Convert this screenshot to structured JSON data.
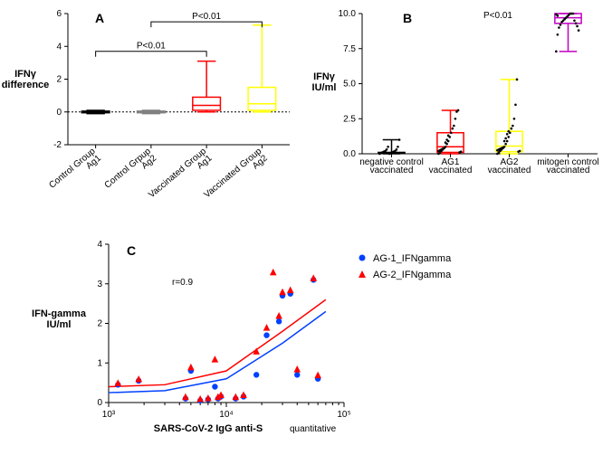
{
  "panelA": {
    "letter": "A",
    "ylabel": "IFNγ\ndifference",
    "pvals": [
      "P<0.01",
      "P<0.01"
    ],
    "ylim": [
      -2,
      6
    ],
    "yticks": [
      -2,
      0,
      2,
      4,
      6
    ],
    "categories": [
      "Control Group\nAg1",
      "Control Grpup\nAg2",
      "Vaccinated Group\nAg1",
      "Vaccinated Group\nAg2"
    ],
    "boxes": [
      {
        "min": -0.1,
        "q1": -0.05,
        "med": 0.0,
        "q3": 0.05,
        "max": 0.1,
        "color": "#000000",
        "fill": "#000000"
      },
      {
        "min": -0.1,
        "q1": -0.05,
        "med": 0.0,
        "q3": 0.05,
        "max": 0.1,
        "color": "#808080",
        "fill": "#808080"
      },
      {
        "min": 0.0,
        "q1": 0.1,
        "med": 0.4,
        "q3": 0.9,
        "max": 3.1,
        "color": "#ff0000",
        "fill": "none"
      },
      {
        "min": 0.0,
        "q1": 0.1,
        "med": 0.5,
        "q3": 1.5,
        "max": 5.3,
        "color": "#ffff00",
        "fill": "none"
      }
    ]
  },
  "panelB": {
    "letter": "B",
    "ylabel": "IFNγ\nIU/ml",
    "pval": "P<0.01",
    "ylim": [
      0,
      10
    ],
    "yticks": [
      0.0,
      2.5,
      5.0,
      7.5,
      10.0
    ],
    "categories": [
      "negative control\nvaccinated",
      "AG1\nvaccinated",
      "AG2\nvaccinated",
      "mitogen control\nvaccinated"
    ],
    "boxes": [
      {
        "min": 0.0,
        "q1": 0.02,
        "med": 0.05,
        "q3": 0.1,
        "max": 1.0,
        "color": "#000000",
        "fill": "none"
      },
      {
        "min": 0.0,
        "q1": 0.1,
        "med": 0.5,
        "q3": 1.5,
        "max": 3.1,
        "color": "#ff0000",
        "fill": "none"
      },
      {
        "min": 0.0,
        "q1": 0.15,
        "med": 0.55,
        "q3": 1.6,
        "max": 5.3,
        "color": "#ffff00",
        "fill": "none"
      },
      {
        "min": 7.3,
        "q1": 9.3,
        "med": 9.7,
        "q3": 10.0,
        "max": 10.0,
        "color": "#c000c0",
        "fill": "none"
      }
    ],
    "scatter": [
      [
        0.0,
        0.05,
        0.1,
        0.15,
        0.2,
        0.3,
        0.5,
        0.0,
        0.05,
        0.1,
        0.15,
        0.2,
        0.3,
        0.5,
        1.0
      ],
      [
        0.0,
        0.1,
        0.2,
        0.3,
        0.4,
        0.5,
        0.7,
        0.9,
        1.2,
        1.5,
        1.8,
        2.0,
        2.5,
        3.0,
        3.1,
        0.1,
        0.15,
        0.2,
        0.25,
        0.3,
        0.35,
        0.4,
        0.8,
        1.0,
        1.3
      ],
      [
        0.0,
        0.1,
        0.2,
        0.3,
        0.4,
        0.5,
        0.7,
        0.9,
        1.2,
        1.5,
        1.8,
        2.0,
        2.5,
        3.5,
        5.3,
        0.15,
        0.2,
        0.25,
        0.3,
        0.35,
        0.4,
        0.45,
        0.9,
        1.1,
        1.4,
        1.6
      ],
      [
        7.3,
        8.5,
        9.0,
        9.2,
        9.4,
        9.5,
        9.6,
        9.7,
        9.8,
        9.9,
        10.0,
        10.0,
        10.0,
        9.5,
        9.3,
        9.1,
        8.8,
        9.95,
        9.85
      ]
    ]
  },
  "panelC": {
    "letter": "C",
    "ylabel": "IFN-gamma\nIU/ml",
    "xlabel": "SARS-CoV-2 IgG anti-S",
    "xlabel_suffix": "quantitative",
    "rlabel": "r=0.9",
    "ylim": [
      0,
      4
    ],
    "yticks": [
      0,
      1,
      2,
      3,
      4
    ],
    "xlim": [
      1000,
      100000
    ],
    "xticks": [
      1000,
      10000,
      100000
    ],
    "xticklabels": [
      "10³",
      "10⁴",
      "10⁵"
    ],
    "legend": [
      {
        "label": "AG-1_IFNgamma",
        "color": "#0040ff",
        "shape": "circle"
      },
      {
        "label": "AG-2_IFNgamma",
        "color": "#ff0000",
        "shape": "triangle"
      }
    ],
    "series1": {
      "color": "#0040ff",
      "points": [
        {
          "x": 1200,
          "y": 0.45
        },
        {
          "x": 1800,
          "y": 0.55
        },
        {
          "x": 4500,
          "y": 0.1
        },
        {
          "x": 5000,
          "y": 0.8
        },
        {
          "x": 6000,
          "y": 0.05
        },
        {
          "x": 7000,
          "y": 0.08
        },
        {
          "x": 8000,
          "y": 0.4
        },
        {
          "x": 8500,
          "y": 0.1
        },
        {
          "x": 9000,
          "y": 0.15
        },
        {
          "x": 12000,
          "y": 0.1
        },
        {
          "x": 14000,
          "y": 0.15
        },
        {
          "x": 18000,
          "y": 0.7
        },
        {
          "x": 22000,
          "y": 1.7
        },
        {
          "x": 28000,
          "y": 2.05
        },
        {
          "x": 30000,
          "y": 2.7
        },
        {
          "x": 35000,
          "y": 2.75
        },
        {
          "x": 40000,
          "y": 0.7
        },
        {
          "x": 55000,
          "y": 3.1
        },
        {
          "x": 60000,
          "y": 0.6
        }
      ],
      "curve": [
        {
          "x": 1000,
          "y": 0.25
        },
        {
          "x": 3000,
          "y": 0.3
        },
        {
          "x": 10000,
          "y": 0.6
        },
        {
          "x": 30000,
          "y": 1.5
        },
        {
          "x": 70000,
          "y": 2.3
        }
      ]
    },
    "series2": {
      "color": "#ff0000",
      "points": [
        {
          "x": 1200,
          "y": 0.5
        },
        {
          "x": 1800,
          "y": 0.6
        },
        {
          "x": 4500,
          "y": 0.15
        },
        {
          "x": 5000,
          "y": 0.9
        },
        {
          "x": 6000,
          "y": 0.1
        },
        {
          "x": 7000,
          "y": 0.12
        },
        {
          "x": 8000,
          "y": 1.1
        },
        {
          "x": 8500,
          "y": 0.15
        },
        {
          "x": 9000,
          "y": 0.2
        },
        {
          "x": 12000,
          "y": 0.15
        },
        {
          "x": 14000,
          "y": 0.2
        },
        {
          "x": 18000,
          "y": 1.3
        },
        {
          "x": 22000,
          "y": 1.9
        },
        {
          "x": 25000,
          "y": 3.3
        },
        {
          "x": 28000,
          "y": 2.2
        },
        {
          "x": 30000,
          "y": 2.8
        },
        {
          "x": 35000,
          "y": 2.85
        },
        {
          "x": 40000,
          "y": 0.85
        },
        {
          "x": 55000,
          "y": 3.15
        },
        {
          "x": 60000,
          "y": 0.7
        }
      ],
      "curve": [
        {
          "x": 1000,
          "y": 0.4
        },
        {
          "x": 3000,
          "y": 0.45
        },
        {
          "x": 10000,
          "y": 0.8
        },
        {
          "x": 30000,
          "y": 1.8
        },
        {
          "x": 70000,
          "y": 2.6
        }
      ]
    }
  }
}
